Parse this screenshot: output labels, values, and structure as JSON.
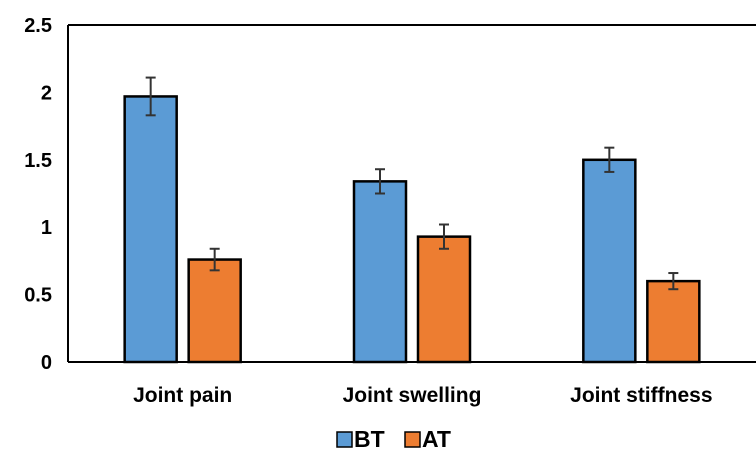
{
  "chart_data": {
    "type": "bar",
    "categories": [
      "Joint pain",
      "Joint swelling",
      "Joint stiffness"
    ],
    "series": [
      {
        "name": "BT",
        "values": [
          1.97,
          1.34,
          1.5
        ],
        "errors": [
          0.14,
          0.09,
          0.09
        ],
        "color": "#5b9bd5"
      },
      {
        "name": "AT",
        "values": [
          0.76,
          0.93,
          0.6
        ],
        "errors": [
          0.08,
          0.09,
          0.06
        ],
        "color": "#ed7d31"
      }
    ],
    "yticks": [
      "0",
      "0.5",
      "1",
      "1.5",
      "2",
      "2.5"
    ],
    "ylim": [
      0,
      2.5
    ],
    "grid": false,
    "legend_position": "bottom",
    "bar_border_color": "#000000"
  }
}
